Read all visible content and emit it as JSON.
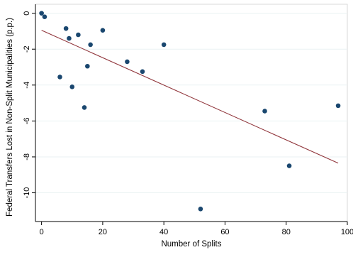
{
  "chart_data": {
    "type": "scatter",
    "title": "",
    "xlabel": "Number of Splits",
    "ylabel": "Federal Transfers Lost in Non-Split Municipalities (p.p.)",
    "xlim": [
      -2,
      100
    ],
    "ylim": [
      -11.6,
      0.5
    ],
    "x_ticks": [
      0,
      20,
      40,
      60,
      80,
      100
    ],
    "y_ticks": [
      0,
      -2,
      -4,
      -6,
      -8,
      -10
    ],
    "x_tick_labels": [
      "0",
      "20",
      "40",
      "60",
      "80",
      "100"
    ],
    "y_tick_labels": [
      "0",
      "-2",
      "-4",
      "-6",
      "-8",
      "-10"
    ],
    "grid": "horizontal",
    "legend": "none",
    "marker_color": "#1a476f",
    "line_color": "#90353b",
    "series": [
      {
        "type": "scatter",
        "points": [
          {
            "x": 0,
            "y": 0.0
          },
          {
            "x": 1,
            "y": -0.2
          },
          {
            "x": 6,
            "y": -3.55
          },
          {
            "x": 8,
            "y": -0.85
          },
          {
            "x": 9,
            "y": -1.4
          },
          {
            "x": 10,
            "y": -4.1
          },
          {
            "x": 12,
            "y": -1.2
          },
          {
            "x": 14,
            "y": -5.25
          },
          {
            "x": 15,
            "y": -2.95
          },
          {
            "x": 16,
            "y": -1.75
          },
          {
            "x": 20,
            "y": -0.95
          },
          {
            "x": 28,
            "y": -2.7
          },
          {
            "x": 33,
            "y": -3.25
          },
          {
            "x": 40,
            "y": -1.75
          },
          {
            "x": 52,
            "y": -10.9
          },
          {
            "x": 73,
            "y": -5.45
          },
          {
            "x": 81,
            "y": -8.5
          },
          {
            "x": 97,
            "y": -5.15
          }
        ]
      },
      {
        "type": "line",
        "points": [
          {
            "x": 0,
            "y": -0.95
          },
          {
            "x": 97,
            "y": -8.35
          }
        ]
      }
    ]
  }
}
